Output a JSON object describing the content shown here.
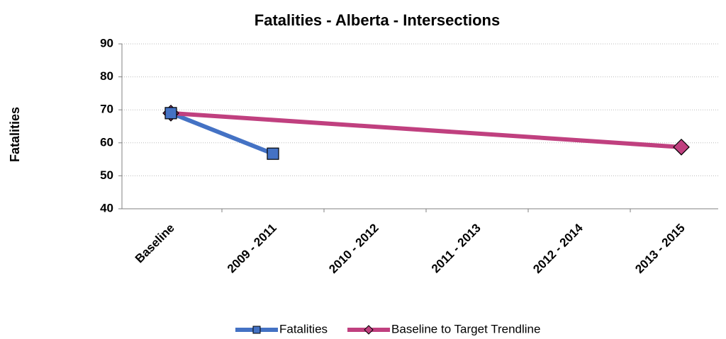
{
  "chart_data": {
    "type": "line",
    "title": "Fatalities - Alberta - Intersections",
    "y_label": "Fatalities",
    "categories": [
      "Baseline",
      "2009 - 2011",
      "2010 - 2012",
      "2011 - 2013",
      "2012 - 2014",
      "2013 - 2015"
    ],
    "series": [
      {
        "name": "Fatalities",
        "color": "#4472c4",
        "marker": "square",
        "values": [
          69,
          56.7,
          null,
          null,
          null,
          null
        ]
      },
      {
        "name": "Baseline to Target Trendline",
        "color": "#c0407f",
        "marker": "diamond",
        "values": [
          69,
          null,
          null,
          null,
          null,
          58.7
        ]
      }
    ],
    "span_gaps": true,
    "ylim": [
      40,
      90
    ],
    "yticks": [
      40,
      50,
      60,
      70,
      80,
      90
    ],
    "grid": true,
    "legend": "bottom"
  }
}
